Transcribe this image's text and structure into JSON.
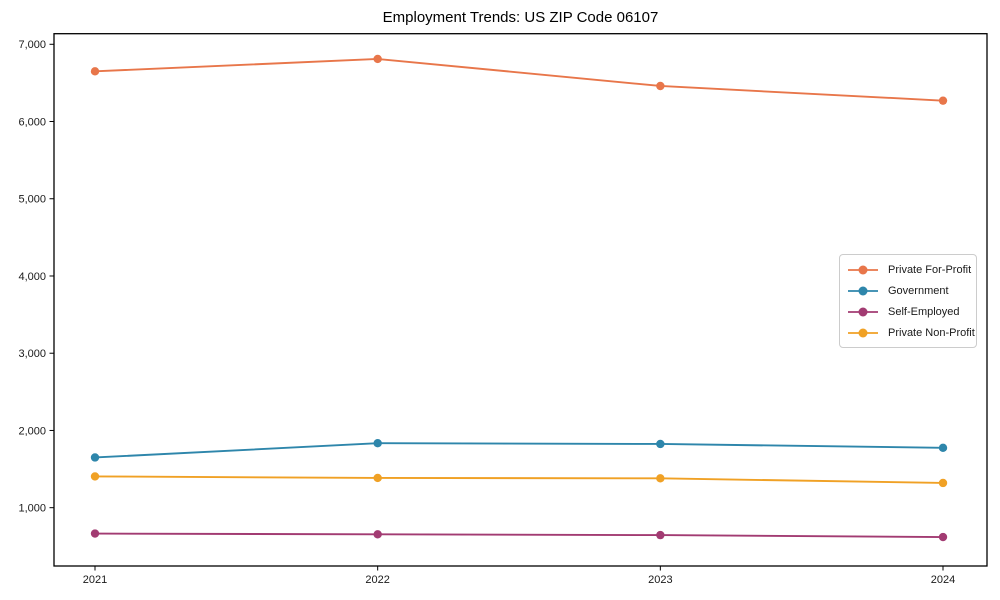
{
  "chart_data": {
    "type": "line",
    "title": "Employment Trends: US ZIP Code 06107",
    "categories": [
      "2021",
      "2022",
      "2023",
      "2024"
    ],
    "series": [
      {
        "name": "Private For-Profit",
        "color": "#E8764A",
        "values": [
          6650,
          6810,
          6460,
          6270
        ]
      },
      {
        "name": "Government",
        "color": "#2E86AB",
        "values": [
          1650,
          1835,
          1825,
          1775
        ]
      },
      {
        "name": "Self-Employed",
        "color": "#A23B72",
        "values": [
          665,
          655,
          645,
          620
        ]
      },
      {
        "name": "Private Non-Profit",
        "color": "#F0A125",
        "values": [
          1405,
          1385,
          1380,
          1320
        ]
      }
    ],
    "yticks": {
      "values": [
        1000,
        2000,
        3000,
        4000,
        5000,
        6000,
        7000
      ],
      "labels": [
        "1,000",
        "2,000",
        "3,000",
        "4,000",
        "5,000",
        "6,000",
        "7,000"
      ]
    },
    "ylim": [
      245,
      7137
    ],
    "xlabel": "",
    "ylabel": "",
    "grid": false,
    "marker": "circle",
    "legend_position": "center right"
  },
  "styles": {
    "background": "#ffffff",
    "axis_color": "#000000",
    "text_color": "#1a1a1a",
    "legend_border": "#cccccc"
  }
}
